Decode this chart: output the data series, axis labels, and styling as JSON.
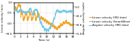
{
  "xlabel": "Time (s)",
  "ylabel_left": "Linear velocity (m/s)",
  "ylabel_right": "Angular velocity (rad/s)",
  "xlim": [
    0,
    18
  ],
  "ylim_left": [
    -0.5,
    1.0
  ],
  "ylim_right": [
    -1.0,
    0.4
  ],
  "yticks_left": [
    -0.5,
    0.0,
    0.5,
    1.0
  ],
  "yticks_right": [
    -1.0,
    -0.6,
    -0.2,
    0.2
  ],
  "xticks": [
    0,
    2,
    4,
    6,
    8,
    10,
    12,
    14,
    16,
    18
  ],
  "legend": [
    {
      "label": "Linear velocity (IMU data)",
      "color": "#f5a623",
      "lw": 0.8
    },
    {
      "label": "Linear velocity (SmartWheel data)",
      "color": "#999999",
      "lw": 0.7
    },
    {
      "label": "Angular velocity (IMU data)",
      "color": "#6ec6e6",
      "lw": 0.8
    }
  ],
  "grid_color": "#dddddd",
  "background_color": "#ffffff"
}
